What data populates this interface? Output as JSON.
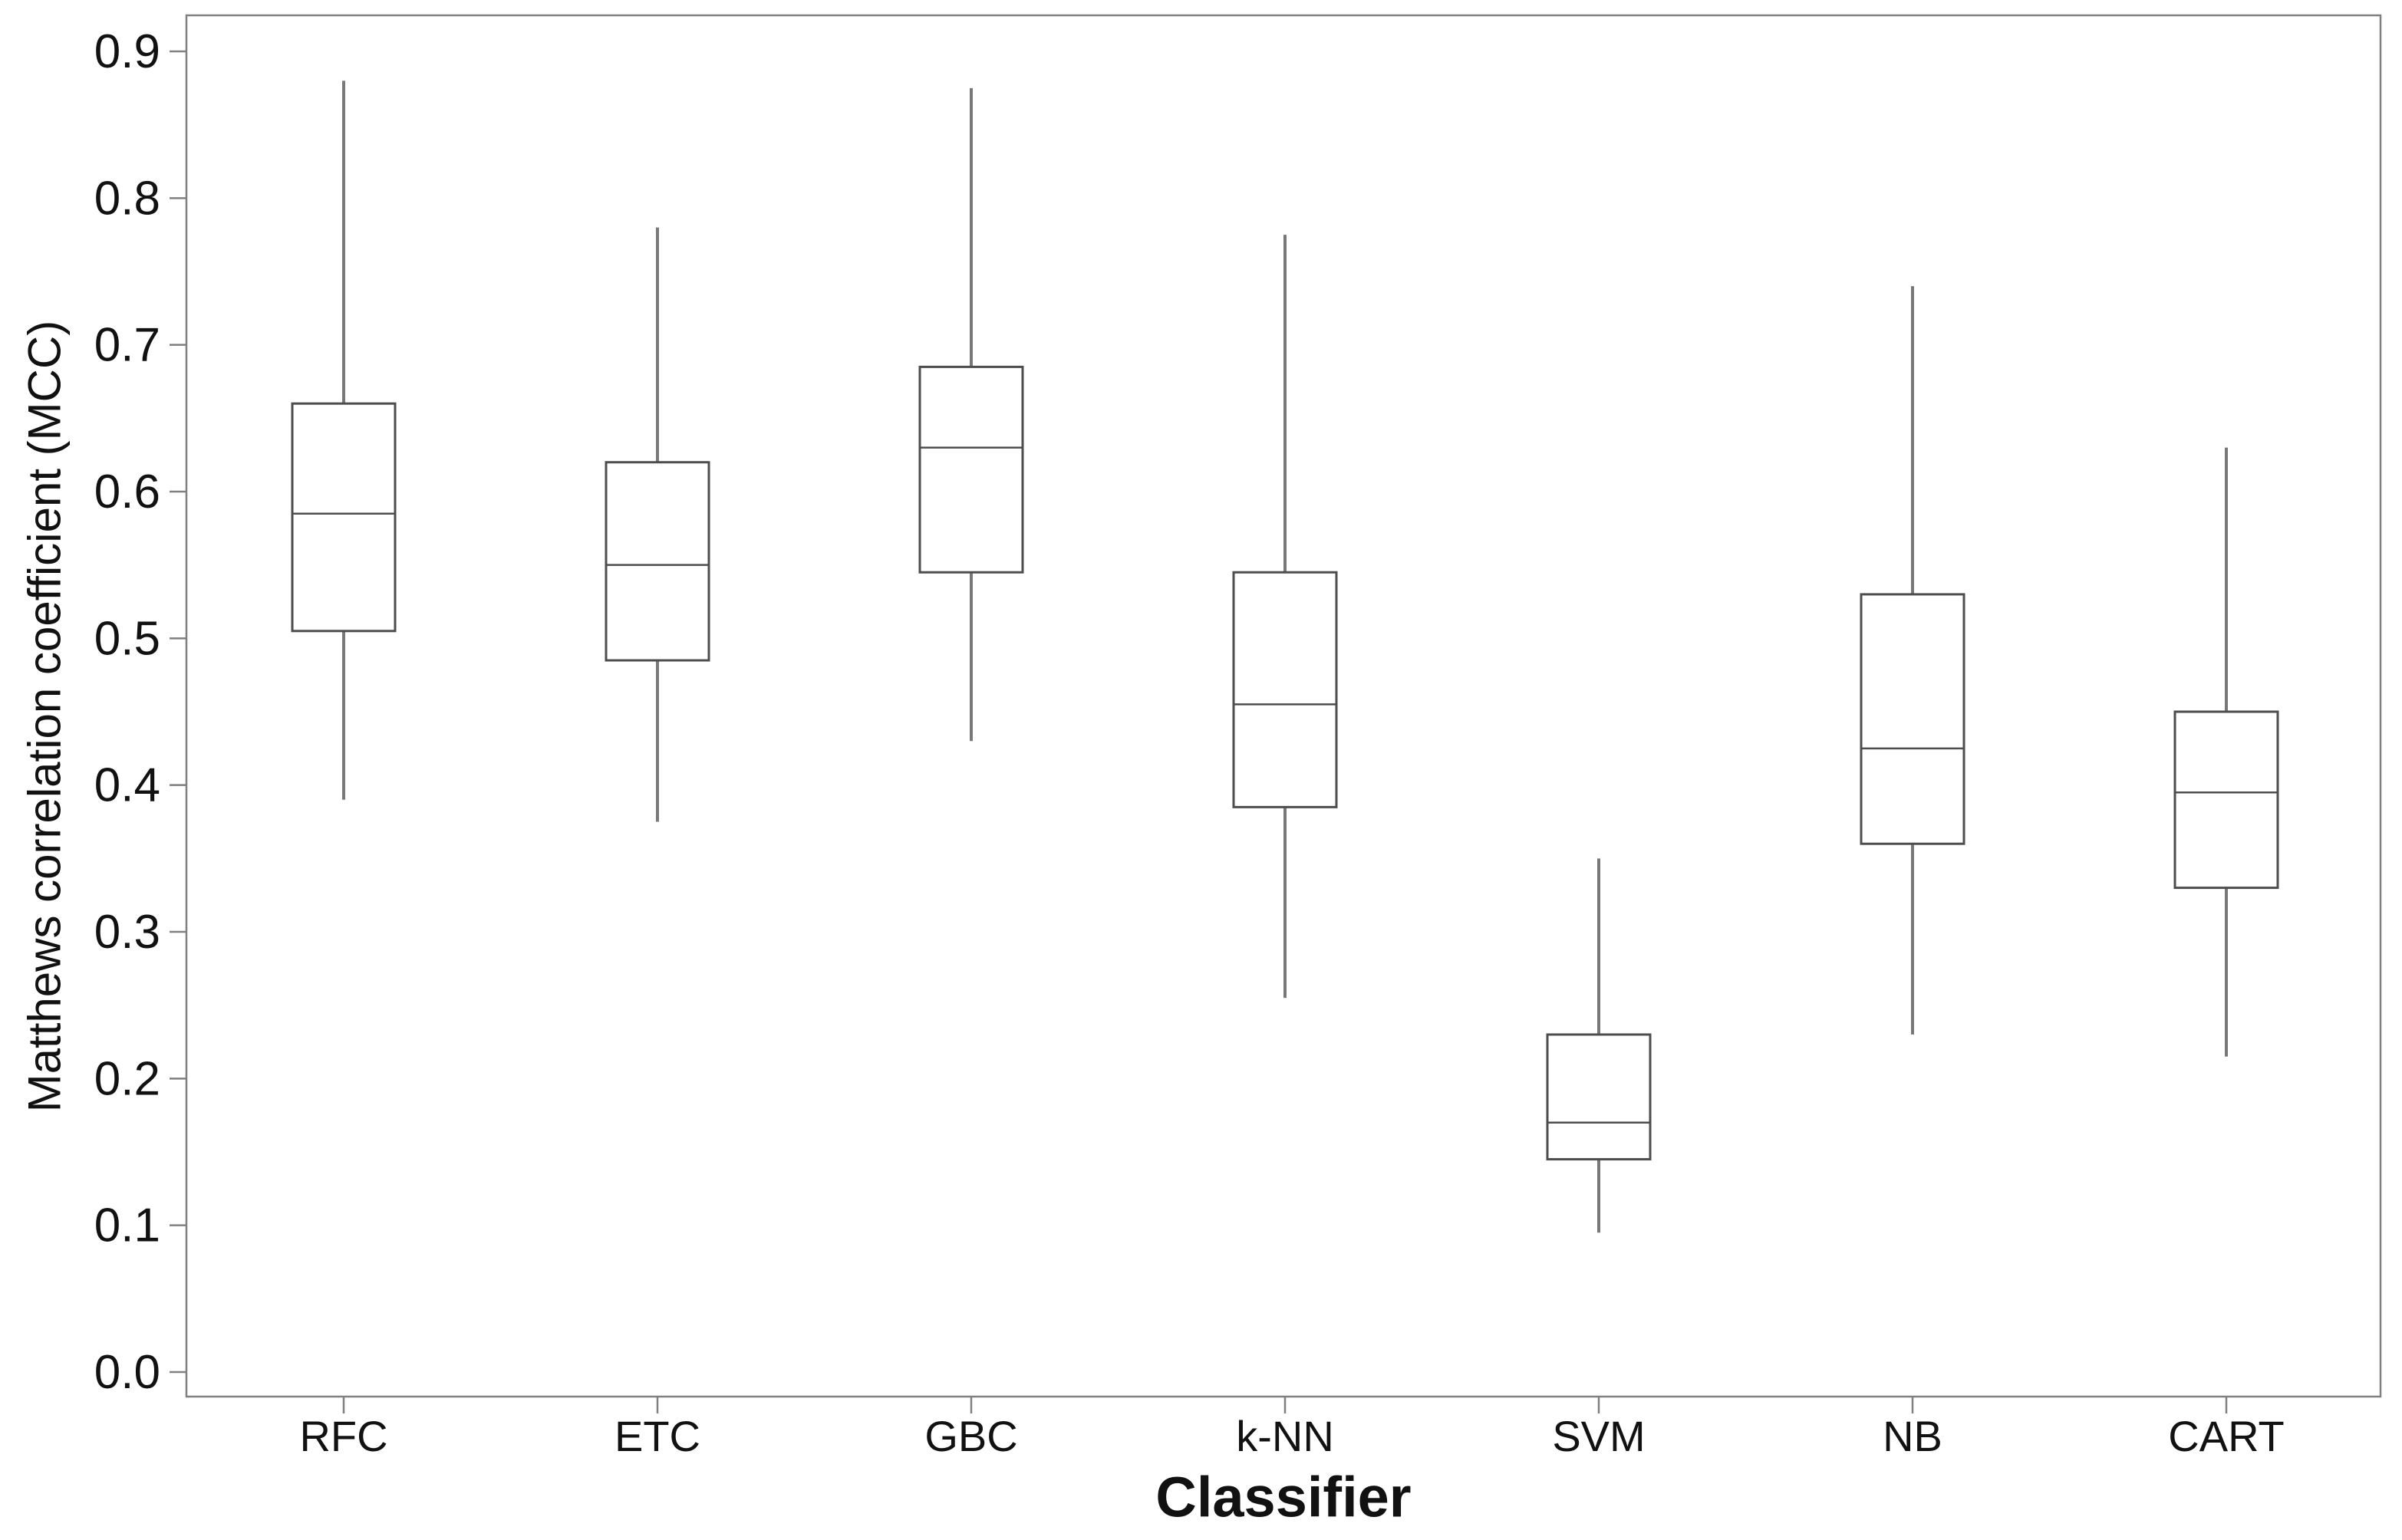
{
  "colors": {
    "background": "#ffffff",
    "frame": "#808080",
    "tick": "#808080",
    "whisker": "#787878",
    "box_stroke": "#4d4d4d",
    "median": "#4d4d4d",
    "box_fill": "#ffffff",
    "text": "#111111"
  },
  "chart_data": {
    "type": "boxplot",
    "title": "",
    "xlabel": "Classifier",
    "ylabel": "Matthews correlation coefficient (MCC)",
    "ylim": [
      0.0,
      0.9
    ],
    "yticks": [
      "0.0",
      "0.1",
      "0.2",
      "0.3",
      "0.4",
      "0.5",
      "0.6",
      "0.7",
      "0.8",
      "0.9"
    ],
    "grid": false,
    "legend": null,
    "categories": [
      "RFC",
      "ETC",
      "GBC",
      "k-NN",
      "SVM",
      "NB",
      "CART"
    ],
    "series": [
      {
        "name": "RFC",
        "whisker_low": 0.39,
        "q1": 0.505,
        "median": 0.585,
        "q3": 0.66,
        "whisker_high": 0.88
      },
      {
        "name": "ETC",
        "whisker_low": 0.375,
        "q1": 0.485,
        "median": 0.55,
        "q3": 0.62,
        "whisker_high": 0.78
      },
      {
        "name": "GBC",
        "whisker_low": 0.43,
        "q1": 0.545,
        "median": 0.63,
        "q3": 0.685,
        "whisker_high": 0.875
      },
      {
        "name": "k-NN",
        "whisker_low": 0.255,
        "q1": 0.385,
        "median": 0.455,
        "q3": 0.545,
        "whisker_high": 0.775
      },
      {
        "name": "SVM",
        "whisker_low": 0.095,
        "q1": 0.145,
        "median": 0.17,
        "q3": 0.23,
        "whisker_high": 0.35
      },
      {
        "name": "NB",
        "whisker_low": 0.23,
        "q1": 0.36,
        "median": 0.425,
        "q3": 0.53,
        "whisker_high": 0.74
      },
      {
        "name": "CART",
        "whisker_low": 0.215,
        "q1": 0.33,
        "median": 0.395,
        "q3": 0.45,
        "whisker_high": 0.63
      }
    ]
  }
}
